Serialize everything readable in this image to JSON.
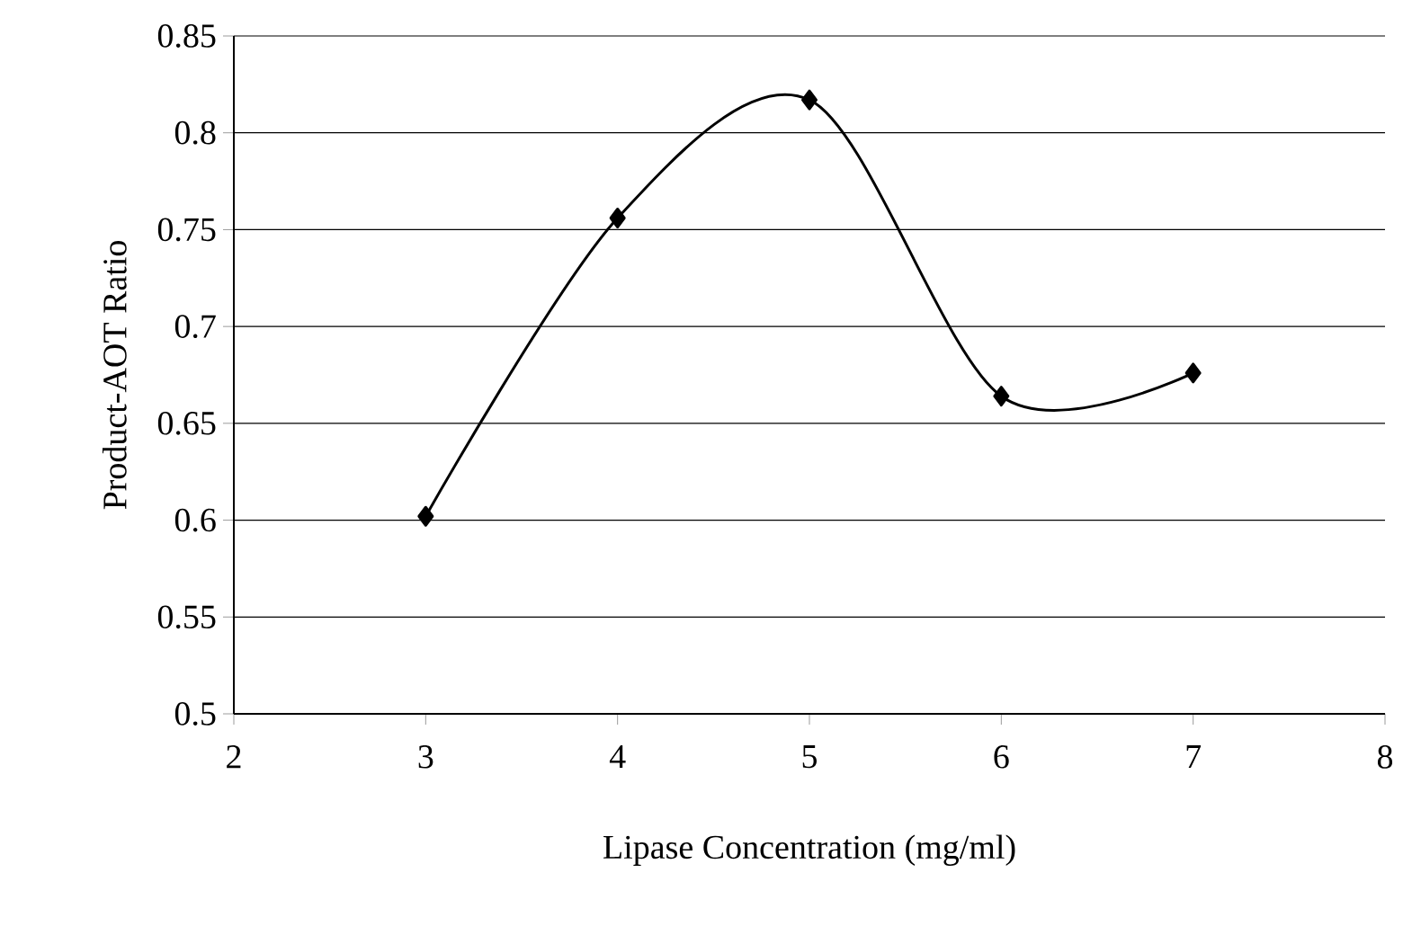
{
  "chart_data": {
    "type": "line",
    "xlabel": "Lipase Concentration (mg/ml)",
    "ylabel": "Product-AOT Ratio",
    "x": [
      3,
      4,
      5,
      6,
      7
    ],
    "series": [
      {
        "color": "#000000",
        "values": [
          0.602,
          0.756,
          0.817,
          0.664,
          0.676
        ]
      }
    ],
    "xlim": [
      2,
      8
    ],
    "xticks": [
      2,
      3,
      4,
      5,
      6,
      7,
      8
    ],
    "ylim": [
      0.5,
      0.85
    ],
    "yticks": [
      0.5,
      0.55,
      0.6,
      0.65,
      0.7,
      0.75,
      0.8,
      0.85
    ],
    "grid": "y",
    "marker": "diamond",
    "line_style": "solid"
  }
}
